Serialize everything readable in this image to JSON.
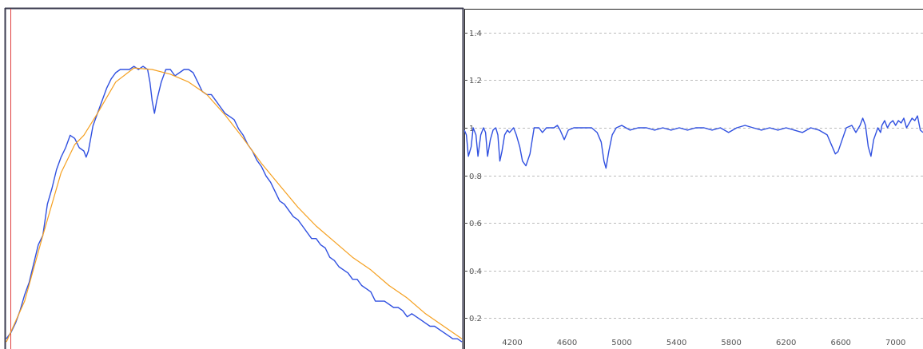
{
  "chart_data": [
    {
      "type": "line",
      "title": "",
      "xlabel": "",
      "ylabel": "",
      "grid": false,
      "legend": "none",
      "frame_color": "#3c3c50",
      "marker_color": "#e04040",
      "xlim": [
        0,
        100
      ],
      "ylim": [
        0,
        100
      ],
      "series": [
        {
          "color": "#3050e0",
          "x": [
            0,
            1,
            2,
            3,
            4,
            5,
            6,
            7,
            8,
            9,
            10,
            11,
            12,
            13,
            14,
            15,
            16,
            17,
            17.5,
            18,
            18.5,
            19,
            20,
            21,
            22,
            23,
            24,
            25,
            26,
            27,
            28,
            29,
            30,
            31,
            31.5,
            32,
            32.5,
            33,
            34,
            35,
            36,
            37,
            38,
            39,
            40,
            41,
            42,
            43,
            44,
            45,
            46,
            47,
            48,
            49,
            50,
            51,
            52,
            53,
            54,
            55,
            56,
            57,
            58,
            59,
            60,
            61,
            62,
            63,
            64,
            65,
            66,
            67,
            68,
            69,
            70,
            71,
            72,
            73,
            74,
            75,
            76,
            77,
            78,
            79,
            80,
            81,
            82,
            83,
            84,
            85,
            86,
            87,
            88,
            89,
            90,
            91,
            92,
            93,
            94,
            95,
            96,
            97,
            98,
            99,
            100
          ],
          "y": [
            2,
            4,
            7,
            11,
            16,
            20,
            26,
            32,
            35,
            45,
            50,
            56,
            60,
            63,
            67,
            66,
            63,
            62,
            60,
            62,
            66,
            70,
            74,
            78,
            82,
            85,
            87,
            88,
            88,
            88,
            89,
            88,
            89,
            88,
            84,
            78,
            74,
            78,
            84,
            88,
            88,
            86,
            87,
            88,
            88,
            87,
            84,
            81,
            80,
            80,
            78,
            76,
            74,
            73,
            72,
            69,
            67,
            64,
            62,
            59,
            57,
            54,
            52,
            49,
            46,
            45,
            43,
            41,
            40,
            38,
            36,
            34,
            34,
            32,
            31,
            28,
            27,
            25,
            24,
            23,
            21,
            21,
            19,
            18,
            17,
            14,
            14,
            14,
            13,
            12,
            12,
            11,
            9,
            10,
            9,
            8,
            7,
            6,
            6,
            5,
            4,
            3,
            2,
            2,
            1
          ]
        },
        {
          "color": "#f5a020",
          "x": [
            0,
            4,
            8,
            12,
            15,
            17,
            20,
            24,
            28,
            32,
            36,
            40,
            44,
            48,
            52,
            56,
            60,
            64,
            68,
            72,
            76,
            80,
            84,
            88,
            92,
            96,
            100
          ],
          "y": [
            1,
            14,
            35,
            55,
            64,
            67,
            74,
            84,
            88.5,
            88,
            86.5,
            84,
            80,
            73.5,
            66,
            58,
            51,
            44,
            38,
            33,
            28,
            24,
            19,
            15,
            10,
            6,
            2
          ]
        }
      ]
    },
    {
      "type": "line",
      "title": "",
      "xlabel": "",
      "ylabel": "",
      "grid": true,
      "legend": "none",
      "frame_color": "#222222",
      "grid_color": "#bbbbbb",
      "xlim": [
        3850,
        7200
      ],
      "ylim": [
        0.07,
        1.5
      ],
      "xticks": [
        4200,
        4600,
        5000,
        5400,
        5800,
        6200,
        6600,
        7000
      ],
      "yticks": [
        0.2,
        0.4,
        0.6,
        0.8,
        1,
        1.2,
        1.4
      ],
      "series": [
        {
          "color": "#3050e0",
          "x": [
            3850,
            3865,
            3880,
            3900,
            3915,
            3935,
            3950,
            3970,
            3990,
            4005,
            4020,
            4040,
            4060,
            4080,
            4095,
            4110,
            4125,
            4145,
            4165,
            4180,
            4195,
            4210,
            4230,
            4255,
            4275,
            4300,
            4330,
            4360,
            4395,
            4420,
            4450,
            4480,
            4505,
            4530,
            4550,
            4580,
            4610,
            4650,
            4700,
            4740,
            4780,
            4820,
            4850,
            4870,
            4885,
            4905,
            4930,
            4960,
            5000,
            5060,
            5120,
            5180,
            5240,
            5300,
            5360,
            5420,
            5480,
            5540,
            5600,
            5660,
            5720,
            5780,
            5840,
            5900,
            5960,
            6020,
            6080,
            6140,
            6200,
            6260,
            6320,
            6380,
            6440,
            6500,
            6530,
            6560,
            6580,
            6610,
            6640,
            6680,
            6710,
            6740,
            6760,
            6780,
            6800,
            6820,
            6840,
            6870,
            6890,
            6900,
            6920,
            6940,
            6960,
            6980,
            7000,
            7020,
            7040,
            7060,
            7080,
            7100,
            7120,
            7140,
            7160,
            7180,
            7200
          ],
          "y": [
            0.99,
            0.97,
            0.88,
            0.92,
            1.0,
            0.97,
            0.88,
            0.97,
            1.0,
            0.98,
            0.88,
            0.95,
            0.99,
            1.0,
            0.97,
            0.86,
            0.9,
            0.97,
            0.99,
            0.98,
            0.99,
            1.0,
            0.97,
            0.92,
            0.86,
            0.84,
            0.89,
            1.0,
            1.0,
            0.98,
            1.0,
            1.0,
            1.0,
            1.01,
            0.99,
            0.95,
            0.99,
            1.0,
            1.0,
            1.0,
            1.0,
            0.98,
            0.94,
            0.86,
            0.83,
            0.9,
            0.97,
            1.0,
            1.01,
            0.99,
            1.0,
            1.0,
            0.99,
            1.0,
            0.99,
            1.0,
            0.99,
            1.0,
            1.0,
            0.99,
            1.0,
            0.98,
            1.0,
            1.01,
            1.0,
            0.99,
            1.0,
            0.99,
            1.0,
            0.99,
            0.98,
            1.0,
            0.99,
            0.97,
            0.93,
            0.89,
            0.9,
            0.95,
            1.0,
            1.01,
            0.98,
            1.01,
            1.04,
            1.01,
            0.92,
            0.88,
            0.95,
            1.0,
            0.98,
            1.01,
            1.03,
            1.0,
            1.02,
            1.03,
            1.01,
            1.03,
            1.02,
            1.04,
            1.0,
            1.02,
            1.04,
            1.03,
            1.05,
            0.99,
            0.98
          ]
        }
      ]
    }
  ]
}
